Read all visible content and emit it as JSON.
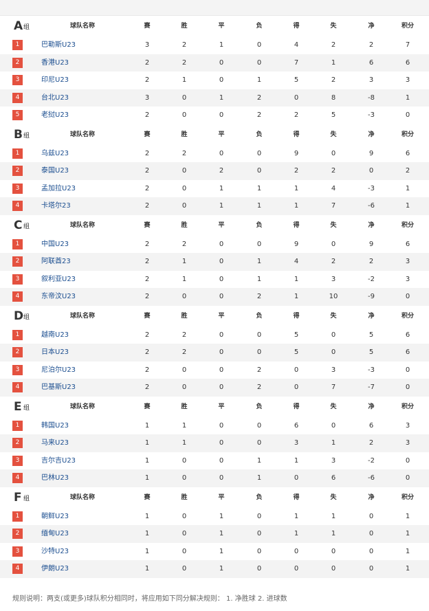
{
  "columns": [
    "球队名称",
    "赛",
    "胜",
    "平",
    "负",
    "得",
    "失",
    "净",
    "积分"
  ],
  "group_suffix": "组",
  "groups": [
    {
      "letter": "A",
      "rows": [
        [
          1,
          "巴勒斯U23",
          3,
          2,
          1,
          0,
          4,
          2,
          2,
          7
        ],
        [
          2,
          "香港U23",
          2,
          2,
          0,
          0,
          7,
          1,
          6,
          6
        ],
        [
          3,
          "印尼U23",
          2,
          1,
          0,
          1,
          5,
          2,
          3,
          3
        ],
        [
          4,
          "台北U23",
          3,
          0,
          1,
          2,
          0,
          8,
          -8,
          1
        ],
        [
          5,
          "老挝U23",
          2,
          0,
          0,
          2,
          2,
          5,
          -3,
          0
        ]
      ]
    },
    {
      "letter": "B",
      "rows": [
        [
          1,
          "乌兹U23",
          2,
          2,
          0,
          0,
          9,
          0,
          9,
          6
        ],
        [
          2,
          "泰国U23",
          2,
          0,
          2,
          0,
          2,
          2,
          0,
          2
        ],
        [
          3,
          "孟加拉U23",
          2,
          0,
          1,
          1,
          1,
          4,
          -3,
          1
        ],
        [
          4,
          "卡塔尔23",
          2,
          0,
          1,
          1,
          1,
          7,
          -6,
          1
        ]
      ]
    },
    {
      "letter": "C",
      "rows": [
        [
          1,
          "中国U23",
          2,
          2,
          0,
          0,
          9,
          0,
          9,
          6
        ],
        [
          2,
          "阿联酋23",
          2,
          1,
          0,
          1,
          4,
          2,
          2,
          3
        ],
        [
          3,
          "叙利亚U23",
          2,
          1,
          0,
          1,
          1,
          3,
          -2,
          3
        ],
        [
          4,
          "东帝汶U23",
          2,
          0,
          0,
          2,
          1,
          10,
          -9,
          0
        ]
      ]
    },
    {
      "letter": "D",
      "rows": [
        [
          1,
          "越南U23",
          2,
          2,
          0,
          0,
          5,
          0,
          5,
          6
        ],
        [
          2,
          "日本U23",
          2,
          2,
          0,
          0,
          5,
          0,
          5,
          6
        ],
        [
          3,
          "尼泊尔U23",
          2,
          0,
          0,
          2,
          0,
          3,
          -3,
          0
        ],
        [
          4,
          "巴基斯U23",
          2,
          0,
          0,
          2,
          0,
          7,
          -7,
          0
        ]
      ]
    },
    {
      "letter": "E",
      "rows": [
        [
          1,
          "韩国U23",
          1,
          1,
          0,
          0,
          6,
          0,
          6,
          3
        ],
        [
          2,
          "马来U23",
          1,
          1,
          0,
          0,
          3,
          1,
          2,
          3
        ],
        [
          3,
          "吉尔吉U23",
          1,
          0,
          0,
          1,
          1,
          3,
          -2,
          0
        ],
        [
          4,
          "巴林U23",
          1,
          0,
          0,
          1,
          0,
          6,
          -6,
          0
        ]
      ]
    },
    {
      "letter": "F",
      "rows": [
        [
          1,
          "朝鲜U23",
          1,
          0,
          1,
          0,
          1,
          1,
          0,
          1
        ],
        [
          2,
          "缅甸U23",
          1,
          0,
          1,
          0,
          1,
          1,
          0,
          1
        ],
        [
          3,
          "沙特U23",
          1,
          0,
          1,
          0,
          0,
          0,
          0,
          1
        ],
        [
          4,
          "伊朗U23",
          1,
          0,
          1,
          0,
          0,
          0,
          0,
          1
        ]
      ]
    }
  ],
  "footer": "规则说明：两支(或更多)球队积分相同时，将应用如下同分解决规则： 1. 净胜球 2. 进球数"
}
